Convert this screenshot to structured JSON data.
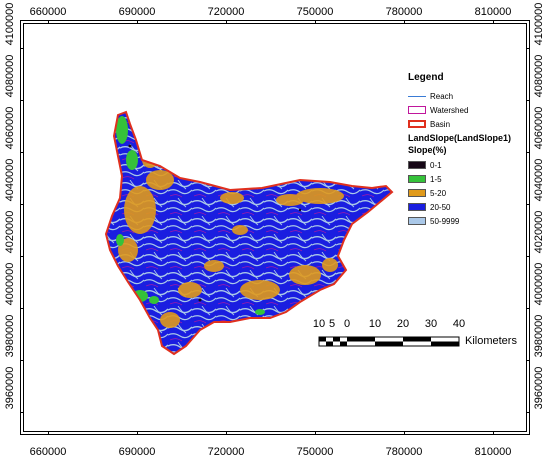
{
  "map": {
    "x_ticks": [
      "660000",
      "690000",
      "720000",
      "750000",
      "780000",
      "810000"
    ],
    "y_ticks": [
      "4100000",
      "4080000",
      "4060000",
      "4040000",
      "4020000",
      "4000000",
      "3980000",
      "3960000"
    ],
    "colors": {
      "basin_outline": "#e0301e",
      "reach": "#3a7bd5",
      "watershed": "#c0169c"
    }
  },
  "legend": {
    "title": "Legend",
    "items": [
      {
        "label": "Reach",
        "symbol": "line",
        "color": "#3a7bd5"
      },
      {
        "label": "Watershed",
        "symbol": "box-outline",
        "color": "#c0169c"
      },
      {
        "label": "Basin",
        "symbol": "box-thick-outline",
        "color": "#e0301e"
      }
    ],
    "raster_name": "LandSlope(LandSlope1)",
    "raster_field": "Slope(%)",
    "classes": [
      {
        "label": "0-1",
        "color": "#160716"
      },
      {
        "label": "1-5",
        "color": "#35c23a"
      },
      {
        "label": "5-20",
        "color": "#e09a1b"
      },
      {
        "label": "20-50",
        "color": "#1a1ee0"
      },
      {
        "label": "50-9999",
        "color": "#aac8e8"
      }
    ]
  },
  "scale_bar": {
    "ticks": [
      "10",
      "5",
      "0",
      "10",
      "20",
      "30",
      "40"
    ],
    "unit": "Kilometers"
  }
}
